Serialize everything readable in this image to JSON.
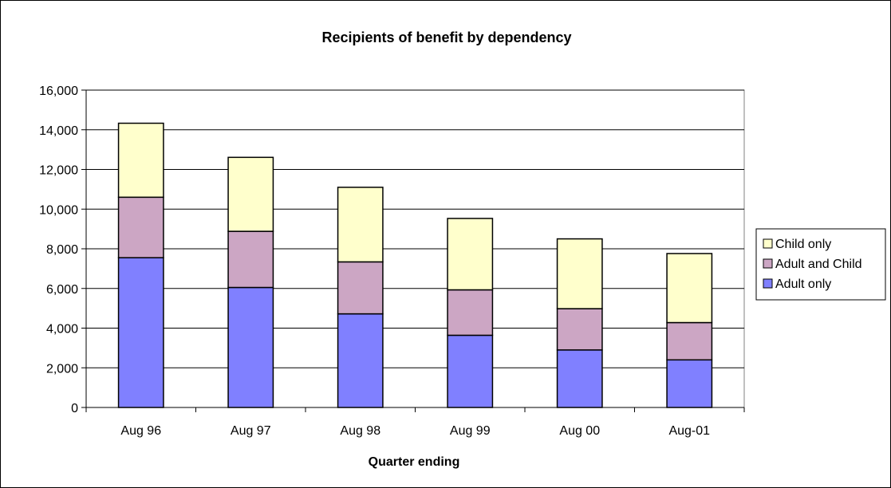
{
  "chart_data": {
    "type": "bar",
    "stacked": true,
    "title": "Recipients of benefit by dependency",
    "xlabel": "Quarter ending",
    "ylabel": "",
    "categories": [
      "Aug 96",
      "Aug 97",
      "Aug 98",
      "Aug 99",
      "Aug 00",
      "Aug-01"
    ],
    "series": [
      {
        "name": "Adult only",
        "color": "#8080ff",
        "values": [
          7550,
          6050,
          4720,
          3640,
          2900,
          2400
        ]
      },
      {
        "name": "Adult and Child",
        "color": "#cca6c4",
        "values": [
          3050,
          2830,
          2620,
          2290,
          2080,
          1880
        ]
      },
      {
        "name": "Child only",
        "color": "#ffffcc",
        "values": [
          3730,
          3730,
          3760,
          3600,
          3520,
          3480
        ]
      }
    ],
    "ylim": [
      0,
      16000
    ],
    "yticks": [
      0,
      2000,
      4000,
      6000,
      8000,
      10000,
      12000,
      14000,
      16000
    ],
    "ytick_labels": [
      "0",
      "2,000",
      "4,000",
      "6,000",
      "8,000",
      "10,000",
      "12,000",
      "14,000",
      "16,000"
    ],
    "grid": true,
    "legend_position": "right",
    "legend_order": [
      "Child only",
      "Adult and Child",
      "Adult only"
    ]
  }
}
